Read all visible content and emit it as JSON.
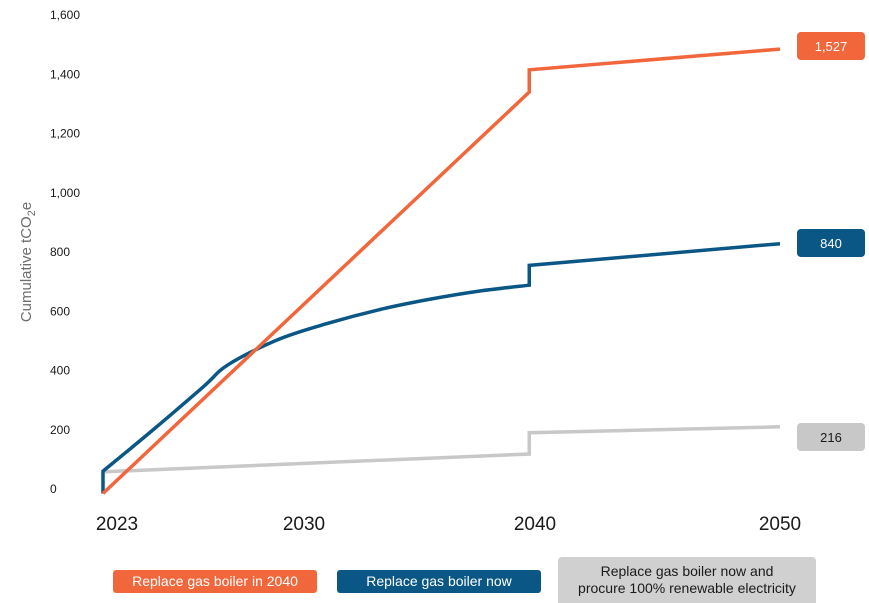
{
  "chart_data": {
    "type": "line",
    "ylabel_main": "Cumulative tCO",
    "ylabel_sub": "2",
    "ylabel_end": "e",
    "xlabel": "",
    "ylim": [
      0,
      1600
    ],
    "xlim": [
      2023,
      2050
    ],
    "y_ticks": [
      0,
      200,
      400,
      600,
      800,
      1000,
      1200,
      1400,
      1600
    ],
    "y_tick_labels": [
      "0",
      "200",
      "400",
      "600",
      "800",
      "1,000",
      "1,200",
      "1,400",
      "1,600"
    ],
    "x_ticks": [
      2023,
      2030,
      2040,
      2050
    ],
    "x_tick_labels": [
      "2023",
      "2030",
      "2040",
      "2050"
    ],
    "grid": false,
    "legend_position": "bottom",
    "series": [
      {
        "name": "Replace gas boiler in 2040",
        "color": "#f2663b",
        "x": [
          2023,
          2040,
          2040,
          2050
        ],
        "y": [
          -15,
          1340,
          1415,
          1485
        ],
        "end_label": "1,527"
      },
      {
        "name": "Replace gas boiler now",
        "color": "#0a5785",
        "x": [
          2023,
          2023,
          2025,
          2027,
          2028,
          2030,
          2032,
          2034,
          2036,
          2038,
          2040,
          2040,
          2050
        ],
        "y": [
          -15,
          60,
          200,
          345,
          420,
          505,
          560,
          605,
          640,
          668,
          688,
          755,
          828
        ],
        "end_label": "840"
      },
      {
        "name_line1": "Replace gas boiler now and",
        "name_line2": "procure 100% renewable electricity",
        "color": "#c8c8c8",
        "x": [
          2023,
          2040,
          2040,
          2050
        ],
        "y": [
          58,
          118,
          190,
          210
        ],
        "end_label": "216"
      }
    ]
  }
}
